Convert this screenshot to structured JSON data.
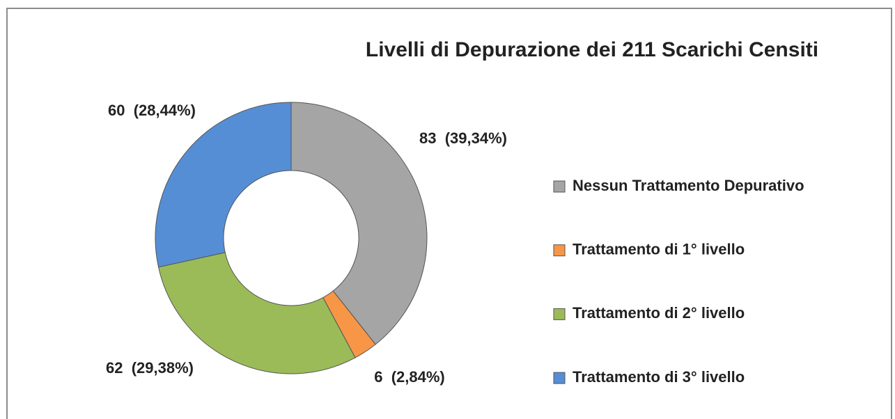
{
  "chart_data": {
    "type": "donut",
    "title": "Livelli di Depurazione dei 211 Scarichi Censiti",
    "categories": [
      "Nessun Trattamento Depurativo",
      "Trattamento di 1° livello",
      "Trattamento di 2° livello",
      "Trattamento di 3° livello"
    ],
    "values": [
      83,
      6,
      62,
      60
    ],
    "value_labels": [
      "83  (39,34%)",
      "6  (2,84%)",
      "62  (29,38%)",
      "60  (28,44%)"
    ],
    "colors": [
      "#a5a5a5",
      "#f79646",
      "#9bbb59",
      "#558ed5"
    ],
    "legend": "right"
  }
}
